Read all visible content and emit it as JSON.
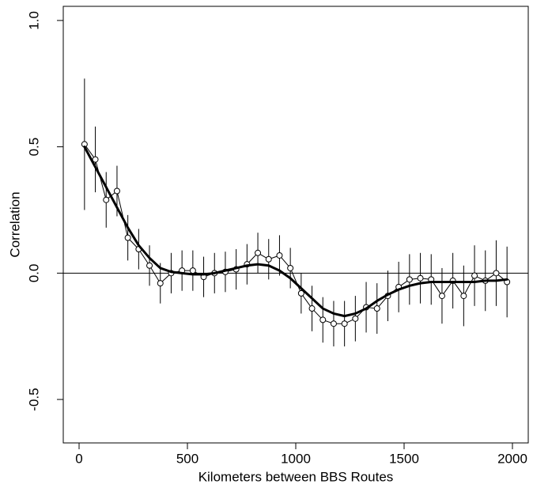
{
  "chart_data": {
    "type": "errorbar-line",
    "xlabel": "Kilometers between BBS Routes",
    "ylabel": "Correlation",
    "x": [
      25,
      75,
      125,
      175,
      225,
      275,
      325,
      375,
      425,
      475,
      525,
      575,
      625,
      675,
      725,
      775,
      825,
      875,
      925,
      975,
      1025,
      1075,
      1125,
      1175,
      1225,
      1275,
      1325,
      1375,
      1425,
      1475,
      1525,
      1575,
      1625,
      1675,
      1725,
      1775,
      1825,
      1875,
      1925,
      1975
    ],
    "series": [
      {
        "color": "#000000",
        "marker": "circle",
        "linewidth": 1,
        "values": [
          0.51,
          0.45,
          0.29,
          0.325,
          0.14,
          0.095,
          0.03,
          -0.04,
          0.0,
          0.01,
          0.01,
          -0.015,
          0.0,
          0.005,
          0.015,
          0.035,
          0.08,
          0.055,
          0.07,
          0.02,
          -0.08,
          -0.14,
          -0.185,
          -0.2,
          -0.2,
          -0.18,
          -0.135,
          -0.14,
          -0.09,
          -0.055,
          -0.025,
          -0.02,
          -0.025,
          -0.09,
          -0.03,
          -0.09,
          -0.01,
          -0.03,
          0.0,
          -0.035
        ],
        "errors": [
          0.26,
          0.13,
          0.11,
          0.1,
          0.09,
          0.08,
          0.08,
          0.08,
          0.08,
          0.08,
          0.08,
          0.08,
          0.08,
          0.08,
          0.08,
          0.08,
          0.08,
          0.08,
          0.08,
          0.08,
          0.08,
          0.09,
          0.09,
          0.09,
          0.09,
          0.09,
          0.1,
          0.1,
          0.1,
          0.1,
          0.1,
          0.1,
          0.1,
          0.11,
          0.11,
          0.12,
          0.12,
          0.12,
          0.13,
          0.14
        ]
      },
      {
        "color": "#000000",
        "linewidth": 3,
        "values": [
          0.5,
          0.42,
          0.34,
          0.26,
          0.18,
          0.11,
          0.06,
          0.02,
          0.005,
          0.0,
          -0.005,
          -0.005,
          0.0,
          0.01,
          0.02,
          0.03,
          0.035,
          0.03,
          0.01,
          -0.02,
          -0.06,
          -0.1,
          -0.14,
          -0.16,
          -0.17,
          -0.16,
          -0.14,
          -0.11,
          -0.085,
          -0.065,
          -0.05,
          -0.04,
          -0.035,
          -0.035,
          -0.035,
          -0.035,
          -0.035,
          -0.03,
          -0.03,
          -0.025
        ]
      }
    ],
    "hline": 0,
    "xlim": [
      -73,
      2073
    ],
    "ylim": [
      -0.672,
      1.056
    ],
    "xticks": [
      0,
      500,
      1000,
      1500,
      2000
    ],
    "yticks": [
      -0.5,
      {
        "value": 0,
        "label": "0.0"
      },
      0.5,
      {
        "value": 1,
        "label": "1.0"
      }
    ]
  }
}
